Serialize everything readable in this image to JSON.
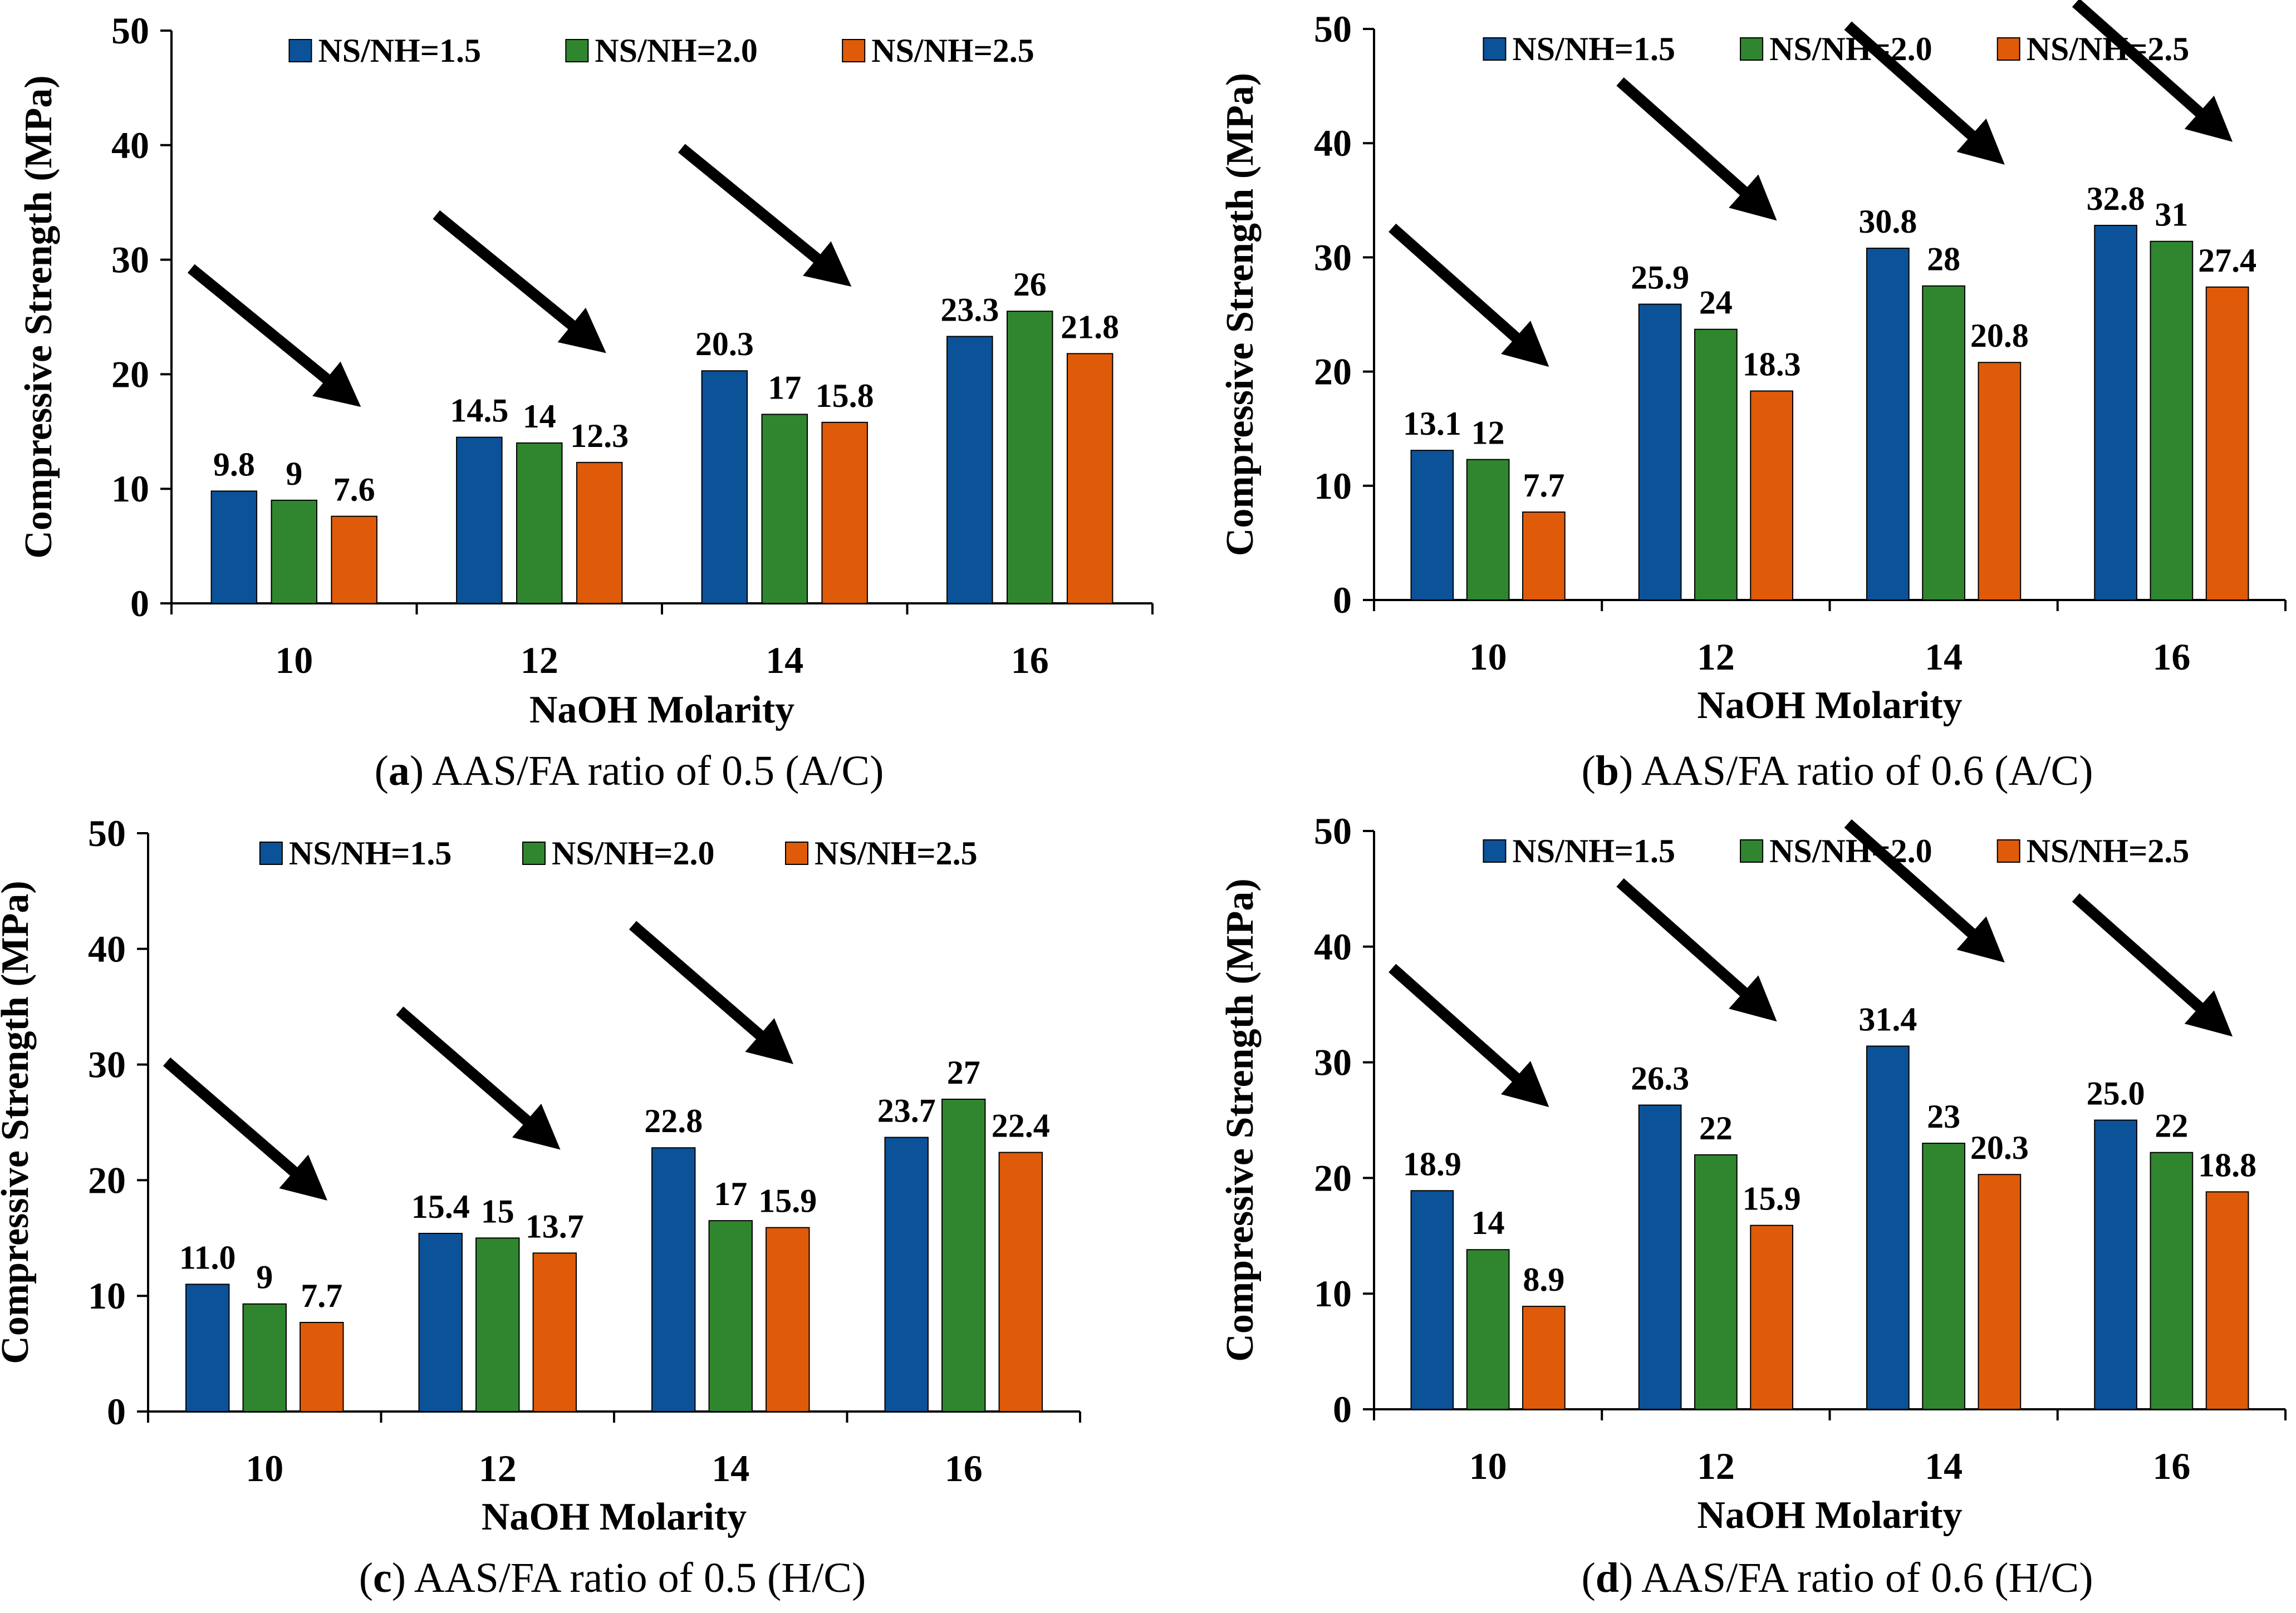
{
  "chart_data": [
    {
      "type": "bar",
      "panel": "a",
      "caption_prefix": "(",
      "caption_letter": "a",
      "caption_rest": ") AAS/FA ratio of 0.5 (A/C)",
      "categories": [
        "10",
        "12",
        "14",
        "16"
      ],
      "series": [
        {
          "name": "NS/NH=1.5",
          "values": [
            9.8,
            14.5,
            20.3,
            23.3
          ],
          "labels": [
            "9.8",
            "14.5",
            "20.3",
            "23.3"
          ]
        },
        {
          "name": "NS/NH=2.0",
          "values": [
            9,
            14,
            16.5,
            25.5
          ],
          "labels": [
            "9",
            "14",
            "17",
            "26"
          ]
        },
        {
          "name": "NS/NH=2.5",
          "values": [
            7.6,
            12.3,
            15.8,
            21.8
          ],
          "labels": [
            "7.6",
            "12.3",
            "15.8",
            "21.8"
          ]
        }
      ],
      "xlabel": "NaOH Molarity",
      "ylabel": "Compressive Strength (MPa)",
      "ylim": [
        0,
        50
      ],
      "yticks": [
        0,
        10,
        20,
        30,
        40,
        50
      ],
      "arrows_over_groups": [
        0,
        1,
        2
      ]
    },
    {
      "type": "bar",
      "panel": "b",
      "caption_prefix": "(",
      "caption_letter": "b",
      "caption_rest": ") AAS/FA ratio of 0.6 (A/C)",
      "categories": [
        "10",
        "12",
        "14",
        "16"
      ],
      "series": [
        {
          "name": "NS/NH=1.5",
          "values": [
            13.1,
            25.9,
            30.8,
            32.8
          ],
          "labels": [
            "13.1",
            "25.9",
            "30.8",
            "32.8"
          ]
        },
        {
          "name": "NS/NH=2.0",
          "values": [
            12.3,
            23.7,
            27.5,
            31.4
          ],
          "labels": [
            "12",
            "24",
            "28",
            "31"
          ]
        },
        {
          "name": "NS/NH=2.5",
          "values": [
            7.7,
            18.3,
            20.8,
            27.4
          ],
          "labels": [
            "7.7",
            "18.3",
            "20.8",
            "27.4"
          ]
        }
      ],
      "xlabel": "NaOH Molarity",
      "ylabel": "Compressive Strength (MPa)",
      "ylim": [
        0,
        50
      ],
      "yticks": [
        0,
        10,
        20,
        30,
        40,
        50
      ],
      "arrows_over_groups": [
        0,
        1,
        2,
        3
      ]
    },
    {
      "type": "bar",
      "panel": "c",
      "caption_prefix": "(",
      "caption_letter": "c",
      "caption_rest": ") AAS/FA ratio of 0.5 (H/C)",
      "categories": [
        "10",
        "12",
        "14",
        "16"
      ],
      "series": [
        {
          "name": "NS/NH=1.5",
          "values": [
            11.0,
            15.4,
            22.8,
            23.7
          ],
          "labels": [
            "11.0",
            "15.4",
            "22.8",
            "23.7"
          ]
        },
        {
          "name": "NS/NH=2.0",
          "values": [
            9.3,
            15,
            16.5,
            27
          ],
          "labels": [
            "9",
            "15",
            "17",
            "27"
          ]
        },
        {
          "name": "NS/NH=2.5",
          "values": [
            7.7,
            13.7,
            15.9,
            22.4
          ],
          "labels": [
            "7.7",
            "13.7",
            "15.9",
            "22.4"
          ]
        }
      ],
      "xlabel": "NaOH Molarity",
      "ylabel": "Compressive Strength (MPa)",
      "ylim": [
        0,
        50
      ],
      "yticks": [
        0,
        10,
        20,
        30,
        40,
        50
      ],
      "arrows_over_groups": [
        0,
        1,
        2
      ]
    },
    {
      "type": "bar",
      "panel": "d",
      "caption_prefix": "(",
      "caption_letter": "d",
      "caption_rest": ") AAS/FA ratio of 0.6 (H/C)",
      "categories": [
        "10",
        "12",
        "14",
        "16"
      ],
      "series": [
        {
          "name": "NS/NH=1.5",
          "values": [
            18.9,
            26.3,
            31.4,
            25.0
          ],
          "labels": [
            "18.9",
            "26.3",
            "31.4",
            "25.0"
          ]
        },
        {
          "name": "NS/NH=2.0",
          "values": [
            13.8,
            22,
            23,
            22.2
          ],
          "labels": [
            "14",
            "22",
            "23",
            "22"
          ]
        },
        {
          "name": "NS/NH=2.5",
          "values": [
            8.9,
            15.9,
            20.3,
            18.8
          ],
          "labels": [
            "8.9",
            "15.9",
            "20.3",
            "18.8"
          ]
        }
      ],
      "xlabel": "NaOH Molarity",
      "ylabel": "Compressive Strength (MPa)",
      "ylim": [
        0,
        50
      ],
      "yticks": [
        0,
        10,
        20,
        30,
        40,
        50
      ],
      "arrows_over_groups": [
        0,
        1,
        2,
        3
      ]
    }
  ],
  "colors": {
    "series": [
      "#0c5298",
      "#30862f",
      "#df5b09"
    ],
    "axis": "#000000",
    "arrow": "#000000"
  }
}
